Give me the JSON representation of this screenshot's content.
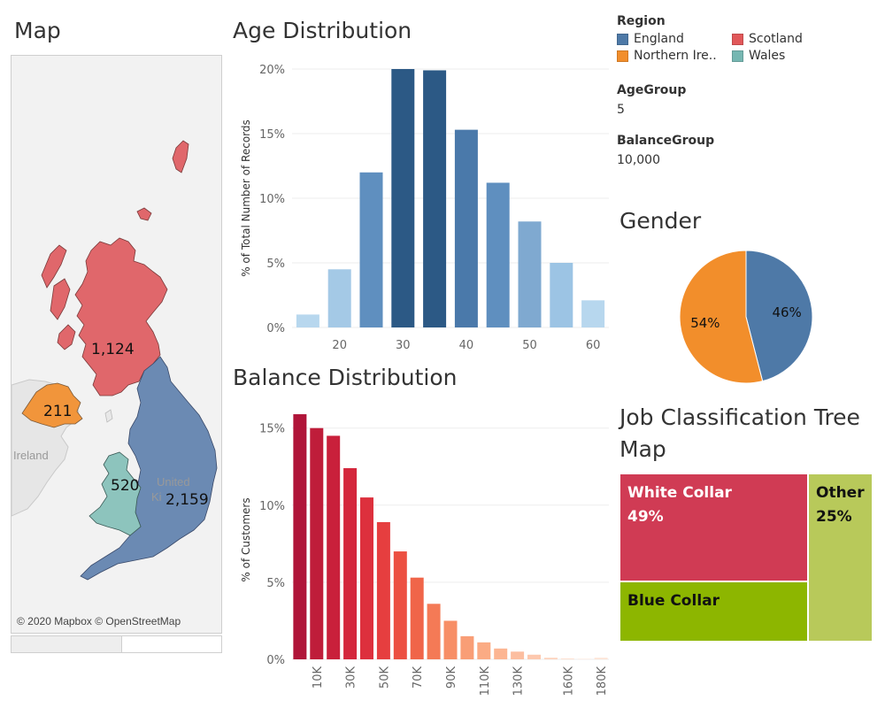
{
  "titles": {
    "map": "Map",
    "age": "Age Distribution",
    "balance": "Balance Distribution",
    "gender": "Gender",
    "job": "Job Classification Tree Map"
  },
  "map": {
    "attribution": "© 2020 Mapbox © OpenStreetMap",
    "region_labels": {
      "scotland": "1,124",
      "northern_ireland": "211",
      "wales": "520",
      "england": "2,159"
    },
    "geo_labels": {
      "ireland": "Ireland",
      "uk_line1": "United",
      "uk_line2": "Ki"
    },
    "colors": {
      "scotland": "#e0676b",
      "northern_ireland": "#f1953b",
      "wales": "#8dc4bd",
      "england": "#6b8ab3",
      "land": "#e8e8e8",
      "sea": "#f4f4f4"
    }
  },
  "legend": {
    "title": "Region",
    "items": [
      {
        "label": "England",
        "color": "#4e79a7"
      },
      {
        "label": "Scotland",
        "color": "#e15759"
      },
      {
        "label": "Northern Ire..",
        "color": "#f28e2b"
      },
      {
        "label": "Wales",
        "color": "#76b7b2"
      }
    ]
  },
  "params": {
    "age_group_label": "AgeGroup",
    "age_group_value": "5",
    "balance_group_label": "BalanceGroup",
    "balance_group_value": "10,000"
  },
  "chart_data": [
    {
      "id": "age",
      "type": "bar",
      "title": "Age Distribution",
      "ylabel": "% of Total Number of Records",
      "xlabel": "",
      "x": [
        15,
        20,
        25,
        30,
        35,
        40,
        45,
        50,
        55,
        60
      ],
      "values": [
        1.0,
        4.5,
        12.0,
        20.0,
        19.9,
        15.3,
        11.2,
        8.2,
        5.0,
        2.1
      ],
      "ylim": [
        0,
        20
      ],
      "yticks": [
        0,
        5,
        10,
        15,
        20
      ],
      "ytick_labels": [
        "0%",
        "5%",
        "10%",
        "15%",
        "20%"
      ],
      "xtick_values": [
        20,
        30,
        40,
        50,
        60
      ],
      "xtick_labels": [
        "20",
        "30",
        "40",
        "50",
        "60"
      ],
      "grid": true,
      "colors": [
        "#b7d7ee",
        "#a4c9e6",
        "#5f8fbf",
        "#2c5985",
        "#2c5985",
        "#4a79aa",
        "#5f8fbf",
        "#7fa9d0",
        "#9cc4e4",
        "#b7d7ee"
      ]
    },
    {
      "id": "balance",
      "type": "bar",
      "title": "Balance Distribution",
      "ylabel": "% of Customers",
      "xlabel": "",
      "x": [
        0,
        10,
        20,
        30,
        40,
        50,
        60,
        70,
        80,
        90,
        100,
        110,
        120,
        130,
        140,
        150,
        160,
        170,
        180
      ],
      "values": [
        15.9,
        15.0,
        14.5,
        12.4,
        10.5,
        8.9,
        7.0,
        5.3,
        3.6,
        2.5,
        1.5,
        1.1,
        0.7,
        0.5,
        0.3,
        0.1,
        0.05,
        0.03,
        0.1
      ],
      "ylim": [
        0,
        15.5
      ],
      "yticks": [
        0,
        5,
        10,
        15
      ],
      "ytick_labels": [
        "0%",
        "5%",
        "10%",
        "15%"
      ],
      "xtick_values": [
        10,
        30,
        50,
        70,
        90,
        110,
        130,
        160,
        180
      ],
      "xtick_labels": [
        "10K",
        "30K",
        "50K",
        "70K",
        "90K",
        "110K",
        "130K",
        "160K",
        "180K"
      ],
      "grid": true,
      "colors": [
        "#b01539",
        "#bf1d3a",
        "#c9203b",
        "#d4273c",
        "#dd303d",
        "#e63e3f",
        "#ec5042",
        "#f06549",
        "#f47a56",
        "#f78e66",
        "#f99e76",
        "#fbab84",
        "#fcb592",
        "#fcbea0",
        "#fdc8ae",
        "#fdd2bc",
        "#fddcca",
        "#fde4d6",
        "#fde4d6"
      ]
    },
    {
      "id": "gender",
      "type": "pie",
      "title": "Gender",
      "slices": [
        {
          "label": "46%",
          "value": 46,
          "color": "#4e79a7"
        },
        {
          "label": "54%",
          "value": 54,
          "color": "#f28e2b"
        }
      ]
    },
    {
      "id": "job",
      "type": "treemap",
      "title": "Job Classification Tree Map",
      "cells": [
        {
          "label": "White Collar",
          "pct_label": "49%",
          "value": 49,
          "color": "#d03b54"
        },
        {
          "label": "Blue Collar",
          "pct_label": "",
          "value": 26,
          "color": "#8db600"
        },
        {
          "label": "Other",
          "pct_label": "25%",
          "value": 25,
          "color": "#b8c95a"
        }
      ]
    }
  ]
}
